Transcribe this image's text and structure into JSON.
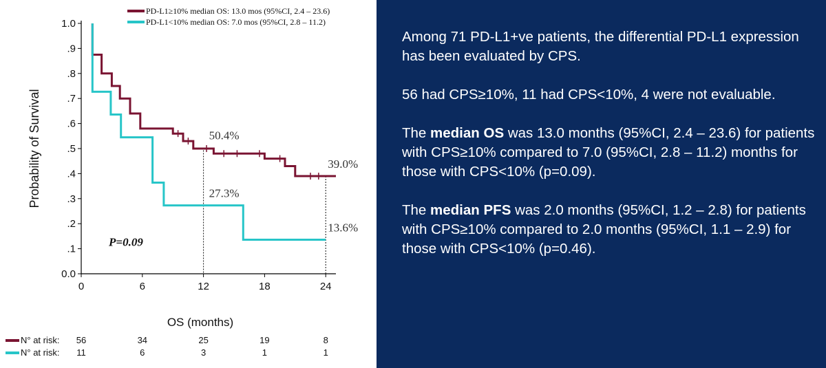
{
  "colors": {
    "background": "#0b2a5e",
    "series1": "#7a1432",
    "series2": "#27c5c8"
  },
  "chart_data": {
    "type": "line",
    "step": true,
    "ylabel": "Probability of Survival",
    "xlabel": "OS (months)",
    "xlim": [
      0,
      25
    ],
    "ylim": [
      0,
      1
    ],
    "xticks": [
      0,
      6,
      12,
      18,
      24
    ],
    "yticks": [
      {
        "v": 0.0,
        "label": "0.0"
      },
      {
        "v": 0.1,
        "label": ".1"
      },
      {
        "v": 0.2,
        "label": ".2"
      },
      {
        "v": 0.3,
        "label": ".3"
      },
      {
        "v": 0.4,
        "label": ".4"
      },
      {
        "v": 0.5,
        "label": ".5"
      },
      {
        "v": 0.6,
        "label": ".6"
      },
      {
        "v": 0.7,
        "label": ".7"
      },
      {
        "v": 0.8,
        "label": ".8"
      },
      {
        "v": 0.9,
        "label": ".9"
      },
      {
        "v": 1.0,
        "label": "1.0"
      }
    ],
    "legend_position": "top-right",
    "series": [
      {
        "name": "PD-L1≥10% median OS: 13.0 mos (95%CI, 2.4 – 23.6)",
        "color": "#7a1432",
        "points": [
          [
            1.1,
            1.0
          ],
          [
            1.1,
            0.875
          ],
          [
            2.0,
            0.875
          ],
          [
            2.0,
            0.8
          ],
          [
            3.0,
            0.8
          ],
          [
            3.0,
            0.75
          ],
          [
            3.8,
            0.75
          ],
          [
            3.8,
            0.7
          ],
          [
            4.8,
            0.7
          ],
          [
            4.8,
            0.64
          ],
          [
            5.8,
            0.64
          ],
          [
            5.8,
            0.58
          ],
          [
            9.0,
            0.58
          ],
          [
            9.0,
            0.56
          ],
          [
            10.0,
            0.56
          ],
          [
            10.0,
            0.53
          ],
          [
            11.0,
            0.53
          ],
          [
            11.0,
            0.5
          ],
          [
            13.0,
            0.5
          ],
          [
            13.0,
            0.48
          ],
          [
            18.0,
            0.48
          ],
          [
            18.0,
            0.46
          ],
          [
            20.0,
            0.46
          ],
          [
            20.0,
            0.43
          ],
          [
            21.0,
            0.43
          ],
          [
            21.0,
            0.39
          ],
          [
            25.0,
            0.39
          ]
        ],
        "censors": [
          [
            9.5,
            0.56
          ],
          [
            10.5,
            0.53
          ],
          [
            12.3,
            0.5
          ],
          [
            14.0,
            0.48
          ],
          [
            15.3,
            0.48
          ],
          [
            17.5,
            0.48
          ],
          [
            19.5,
            0.46
          ],
          [
            22.5,
            0.39
          ],
          [
            23.3,
            0.39
          ]
        ]
      },
      {
        "name": "PD-L1<10% median OS: 7.0 mos (95%CI, 2.8 – 11.2)",
        "color": "#27c5c8",
        "points": [
          [
            1.1,
            1.0
          ],
          [
            1.1,
            0.727
          ],
          [
            2.9,
            0.727
          ],
          [
            2.9,
            0.636
          ],
          [
            3.9,
            0.636
          ],
          [
            3.9,
            0.545
          ],
          [
            7.0,
            0.545
          ],
          [
            7.0,
            0.364
          ],
          [
            8.1,
            0.364
          ],
          [
            8.1,
            0.273
          ],
          [
            15.9,
            0.273
          ],
          [
            15.9,
            0.136
          ],
          [
            24.0,
            0.136
          ]
        ],
        "censors": []
      }
    ],
    "annotations": [
      {
        "text": "50.4%",
        "x": 12,
        "y": 0.504,
        "color": "#333333"
      },
      {
        "text": "27.3%",
        "x": 12,
        "y": 0.273,
        "color": "#333333"
      },
      {
        "text": "39.0%",
        "x": 24,
        "y": 0.39,
        "color": "#333333"
      },
      {
        "text": "13.6%",
        "x": 24,
        "y": 0.136,
        "color": "#333333"
      }
    ],
    "p_value": "P=0.09",
    "at_risk": {
      "label": "N° at risk:",
      "times": [
        0,
        6,
        12,
        18,
        24
      ],
      "rows": [
        {
          "color": "#7a1432",
          "values": [
            "56",
            "34",
            "25",
            "19",
            "8"
          ]
        },
        {
          "color": "#27c5c8",
          "values": [
            "11",
            "6",
            "3",
            "1",
            "1"
          ]
        }
      ]
    }
  },
  "text": {
    "p1": "Among 71 PD-L1+ve patients, the differential PD-L1 expression has been evaluated by CPS.",
    "p2": "56 had CPS≥10%, 11 had CPS<10%, 4 were not evaluable.",
    "p3_pre": "The ",
    "p3_bold": "median OS",
    "p3_post": " was 13.0 months (95%CI, 2.4 – 23.6) for patients with CPS≥10% compared to 7.0 (95%CI, 2.8 – 11.2) months for those with CPS<10% (p=0.09).",
    "p4_pre": "The ",
    "p4_bold": "median PFS",
    "p4_post": " was 2.0 months (95%CI, 1.2 – 2.8) for patients with CPS≥10% compared to 2.0 months (95%CI, 1.1 – 2.9) for those with CPS<10% (p=0.46)."
  }
}
